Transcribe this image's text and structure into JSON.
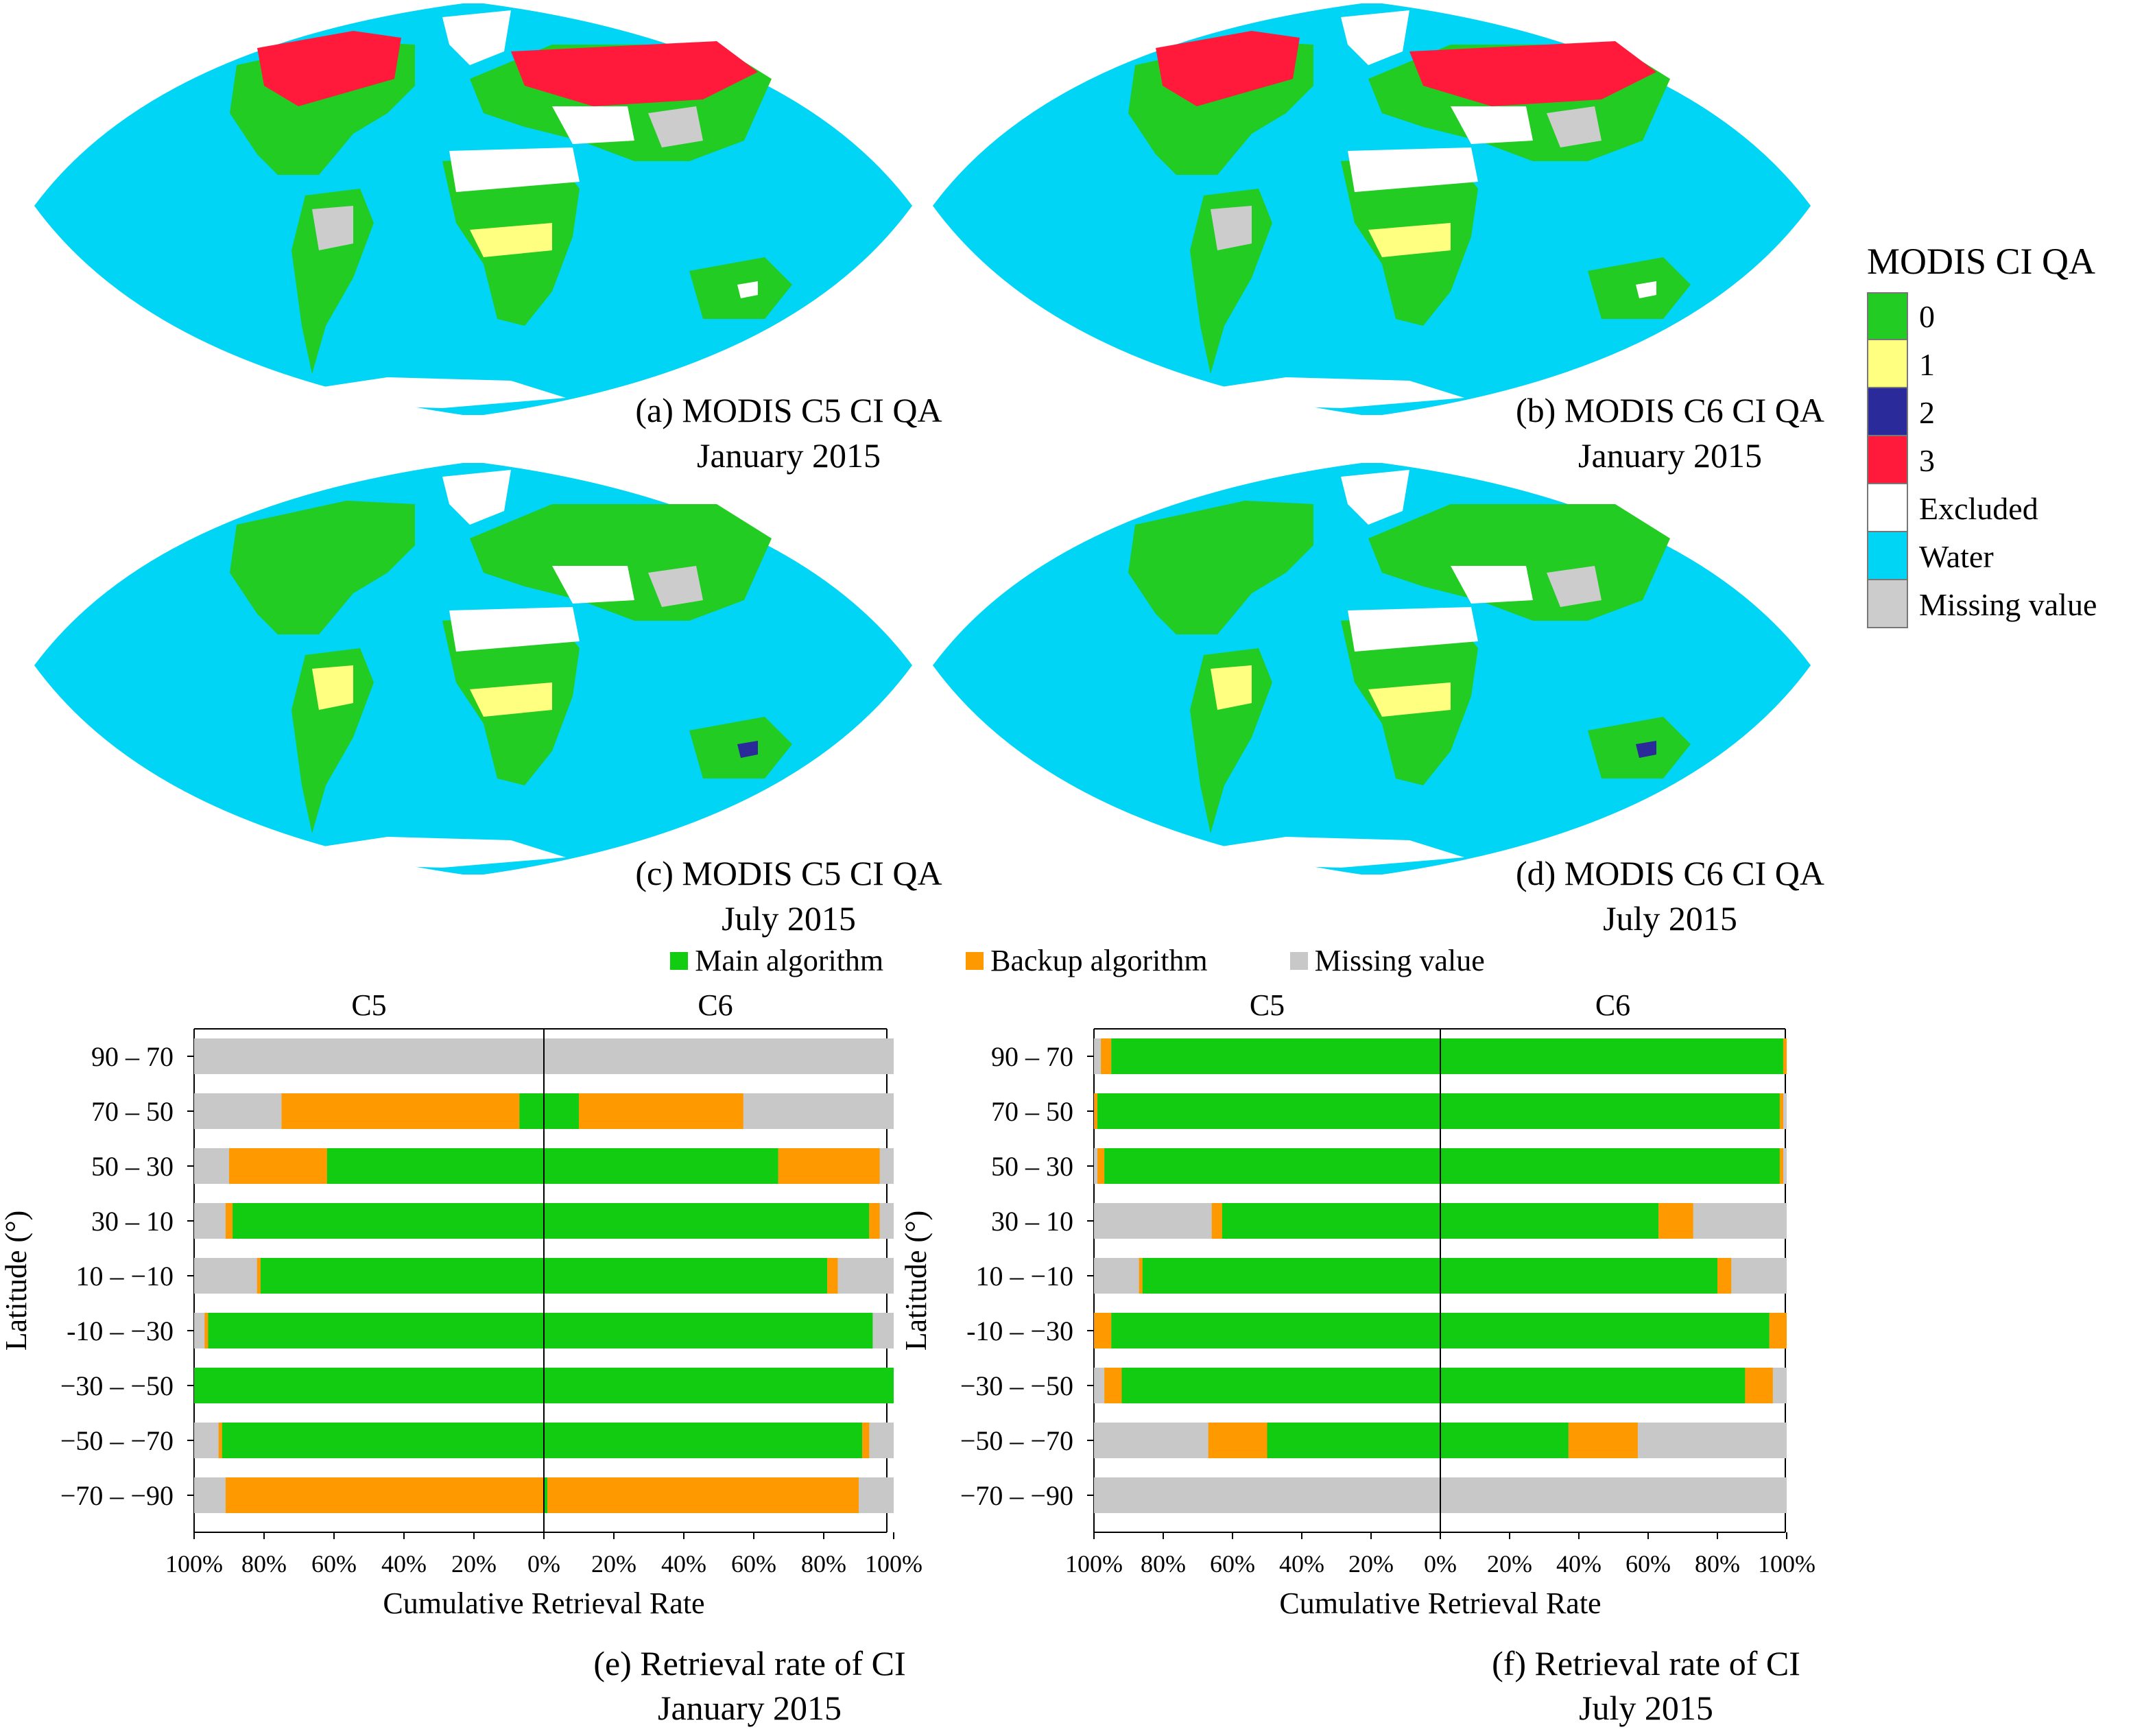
{
  "legend": {
    "title": "MODIS CI QA",
    "items": [
      {
        "label": "0",
        "color": "#22cc22"
      },
      {
        "label": "1",
        "color": "#ffff80"
      },
      {
        "label": "2",
        "color": "#2a2a9a"
      },
      {
        "label": "3",
        "color": "#ff1a3c"
      },
      {
        "label": "Excluded",
        "color": "#ffffff"
      },
      {
        "label": "Water",
        "color": "#00d5f5"
      },
      {
        "label": "Missing value",
        "color": "#cccccc"
      }
    ]
  },
  "maps": [
    {
      "id": "a",
      "caption_line1": "(a) MODIS C5 CI QA",
      "caption_line2": "January 2015"
    },
    {
      "id": "b",
      "caption_line1": "(b) MODIS C6 CI QA",
      "caption_line2": "January 2015"
    },
    {
      "id": "c",
      "caption_line1": "(c) MODIS C5 CI QA",
      "caption_line2": "July 2015"
    },
    {
      "id": "d",
      "caption_line1": "(d) MODIS C6 CI QA",
      "caption_line2": "July 2015"
    }
  ],
  "chart_legend": [
    {
      "label": "Main algorithm",
      "color": "#11cc11"
    },
    {
      "label": "Backup algorithm",
      "color": "#ff9900"
    },
    {
      "label": "Missing value",
      "color": "#c8c8c8"
    }
  ],
  "chart_data": [
    {
      "type": "bar",
      "orientation": "horizontal-diverging",
      "panel": "(e)",
      "caption_line1": "(e) Retrieval rate of CI",
      "caption_line2": "January 2015",
      "left_title": "C5",
      "right_title": "C6",
      "xlabel": "Cumulative Retrieval Rate",
      "ylabel": "Latitude (°)",
      "xticks_left": [
        "100%",
        "80%",
        "60%",
        "40%",
        "20%",
        "0%"
      ],
      "xticks_right": [
        "0%",
        "20%",
        "40%",
        "60%",
        "80%",
        "100%"
      ],
      "categories": [
        "90 – 70",
        "70 – 50",
        "50 – 30",
        "30 – 10",
        "10 – −10",
        "-10 – −30",
        "−30 – −50",
        "−50 – −70",
        "−70 – −90"
      ],
      "c5": {
        "main": [
          0,
          7,
          62,
          89,
          81,
          96,
          100,
          92,
          0
        ],
        "backup": [
          0,
          68,
          28,
          2,
          1,
          1,
          0,
          1,
          91
        ]
      },
      "c6": {
        "main": [
          0,
          10,
          67,
          93,
          81,
          94,
          100,
          91,
          1
        ],
        "backup": [
          0,
          47,
          29,
          3,
          3,
          0,
          0,
          2,
          89
        ]
      }
    },
    {
      "type": "bar",
      "orientation": "horizontal-diverging",
      "panel": "(f)",
      "caption_line1": "(f) Retrieval rate of CI",
      "caption_line2": "July 2015",
      "left_title": "C5",
      "right_title": "C6",
      "xlabel": "Cumulative Retrieval Rate",
      "ylabel": "Latitude (°)",
      "xticks_left": [
        "100%",
        "80%",
        "60%",
        "40%",
        "20%",
        "0%"
      ],
      "xticks_right": [
        "0%",
        "20%",
        "40%",
        "60%",
        "80%",
        "100%"
      ],
      "categories": [
        "90 – 70",
        "70 – 50",
        "50 – 30",
        "30 – 10",
        "10 – −10",
        "-10 – −30",
        "−30 – −50",
        "−50 – −70",
        "−70 – −90"
      ],
      "c5": {
        "main": [
          95,
          99,
          97,
          63,
          86,
          95,
          92,
          50,
          0
        ],
        "backup": [
          3,
          1,
          2,
          3,
          1,
          5,
          5,
          17,
          0
        ]
      },
      "c6": {
        "main": [
          99,
          98,
          98,
          63,
          80,
          95,
          88,
          37,
          0
        ],
        "backup": [
          1,
          1,
          1,
          10,
          4,
          5,
          8,
          20,
          0
        ]
      }
    }
  ]
}
